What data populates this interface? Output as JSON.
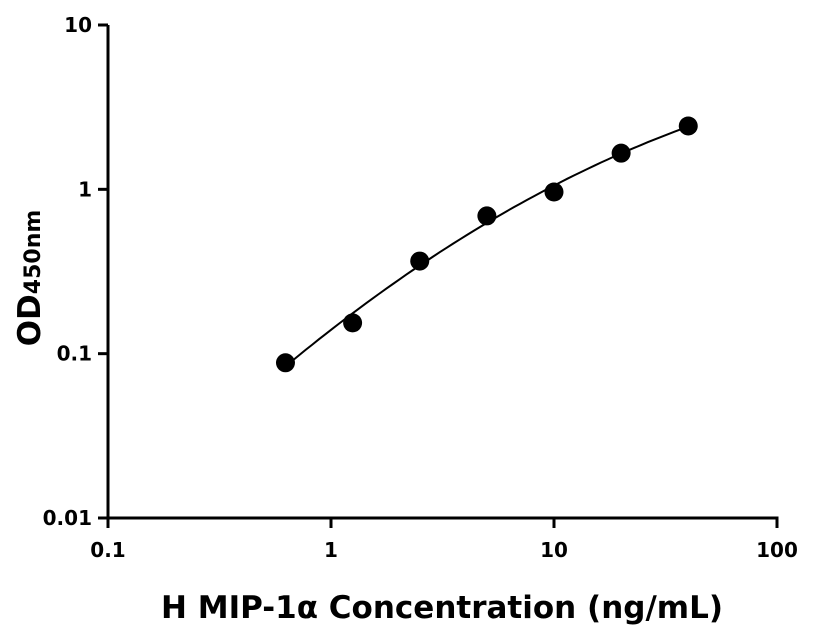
{
  "chart_data": {
    "type": "scatter",
    "title": "",
    "xlabel": "H MIP-1α Concentration (ng/mL)",
    "ylabel_main": "OD",
    "ylabel_sub": "450nm",
    "x_scale": "log",
    "y_scale": "log",
    "xlim": [
      0.1,
      100
    ],
    "ylim": [
      0.01,
      10
    ],
    "x_ticks": [
      0.1,
      1,
      10,
      100
    ],
    "x_tick_labels": [
      "0.1",
      "1",
      "10",
      "100"
    ],
    "y_ticks": [
      0.01,
      0.1,
      1,
      10
    ],
    "y_tick_labels": [
      "0.01",
      "0.1",
      "1",
      "10"
    ],
    "grid": false,
    "fit_curve": true,
    "points": {
      "x": [
        0.625,
        1.25,
        2.5,
        5,
        10,
        20,
        40
      ],
      "y": [
        0.088,
        0.154,
        0.366,
        0.689,
        0.963,
        1.66,
        2.43
      ]
    },
    "colors": {
      "marker": "#000000",
      "line": "#000000"
    }
  }
}
